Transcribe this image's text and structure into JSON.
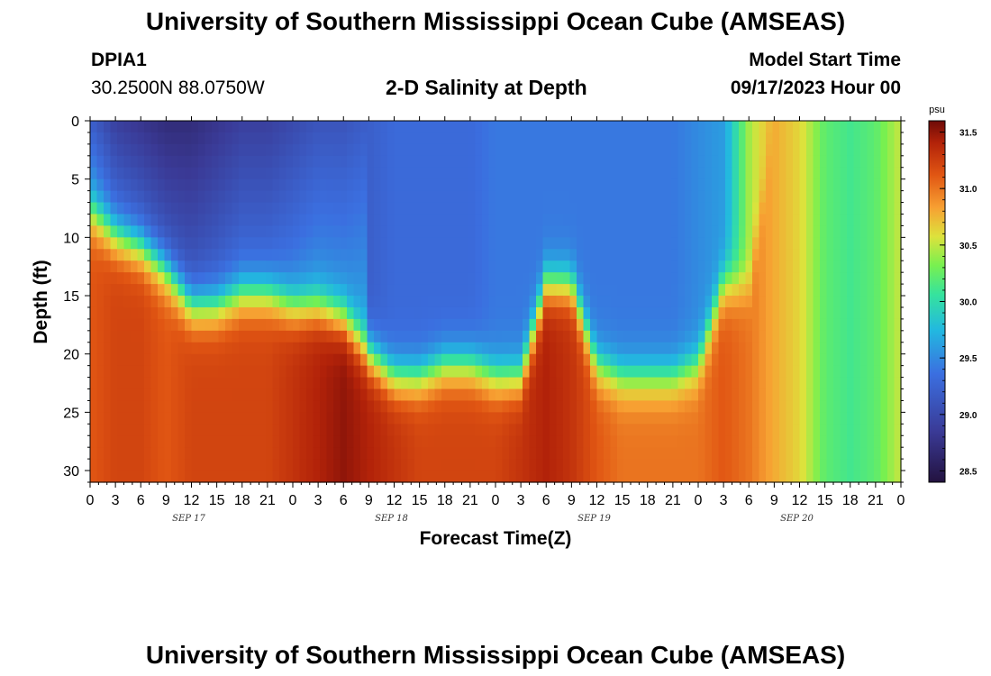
{
  "header": {
    "title": "University of Southern Mississippi Ocean Cube (AMSEAS)",
    "station": "DPIA1",
    "coords": "30.2500N  88.0750W",
    "subtitle": "2-D Salinity at Depth",
    "model_start_label": "Model Start Time",
    "model_start_value": "09/17/2023 Hour 00"
  },
  "footer": {
    "title": "University of Southern Mississippi Ocean Cube (AMSEAS)"
  },
  "chart_data": {
    "type": "heatmap",
    "title": "2-D Salinity at Depth",
    "xlabel": "Forecast Time(Z)",
    "ylabel": "Depth (ft)",
    "x_range_hours": [
      0,
      96
    ],
    "y_range_ft": [
      0,
      31
    ],
    "y_inverted": true,
    "x_tick_labels": [
      "0",
      "3",
      "6",
      "9",
      "12",
      "15",
      "18",
      "21",
      "0",
      "3",
      "6",
      "9",
      "12",
      "15",
      "18",
      "21",
      "0",
      "3",
      "6",
      "9",
      "12",
      "15",
      "18",
      "21",
      "0",
      "3",
      "6",
      "9",
      "12",
      "15",
      "18",
      "21",
      "0"
    ],
    "y_ticks": [
      0,
      5,
      10,
      15,
      20,
      25,
      30
    ],
    "y_tick_labels": [
      "0",
      "5",
      "10",
      "15",
      "20",
      "25",
      "30"
    ],
    "date_labels": [
      {
        "label": "SEP 17",
        "hour": 12
      },
      {
        "label": "SEP 18",
        "hour": 36
      },
      {
        "label": "SEP 19",
        "hour": 60
      },
      {
        "label": "SEP 20",
        "hour": 84
      }
    ],
    "colorbar": {
      "unit": "psu",
      "min": 28.4,
      "max": 31.6,
      "ticks": [
        28.5,
        29.0,
        29.5,
        30.0,
        30.5,
        31.0,
        31.5
      ],
      "tick_labels": [
        "28.5",
        "29.0",
        "29.5",
        "30.0",
        "30.5",
        "31.0",
        "31.5"
      ]
    },
    "columns_hours": [
      0,
      3,
      6,
      9,
      12,
      15,
      18,
      21,
      24,
      27,
      30,
      33,
      36,
      39,
      42,
      45,
      48,
      51,
      54,
      57,
      60,
      63,
      66,
      69,
      72,
      75,
      78,
      81,
      84,
      87,
      90,
      93,
      96
    ],
    "interface_depth_ft": [
      8,
      10,
      11,
      13,
      16,
      16,
      15,
      15,
      16,
      16,
      17,
      20,
      22,
      22,
      21,
      21,
      22,
      22,
      14,
      14,
      21,
      22,
      22,
      22,
      21,
      14,
      14,
      0,
      0,
      0,
      0,
      0,
      0
    ],
    "surface_salinity_psu": [
      29.2,
      28.9,
      28.8,
      28.7,
      28.7,
      28.8,
      28.9,
      28.9,
      29.0,
      29.1,
      29.1,
      29.2,
      29.3,
      29.3,
      29.3,
      29.3,
      29.4,
      29.4,
      29.4,
      29.4,
      29.4,
      29.4,
      29.4,
      29.4,
      29.5,
      29.6,
      30.4,
      30.8,
      30.6,
      30.2,
      30.1,
      30.2,
      30.5
    ],
    "bottom_salinity_psu": [
      31.1,
      31.2,
      31.2,
      31.1,
      31.2,
      31.2,
      31.2,
      31.2,
      31.3,
      31.4,
      31.5,
      31.4,
      31.3,
      31.2,
      31.2,
      31.2,
      31.2,
      31.3,
      31.4,
      31.3,
      31.1,
      31.0,
      31.0,
      31.0,
      31.0,
      31.1,
      31.0,
      30.8,
      30.6,
      30.2,
      30.1,
      30.2,
      30.5
    ]
  }
}
